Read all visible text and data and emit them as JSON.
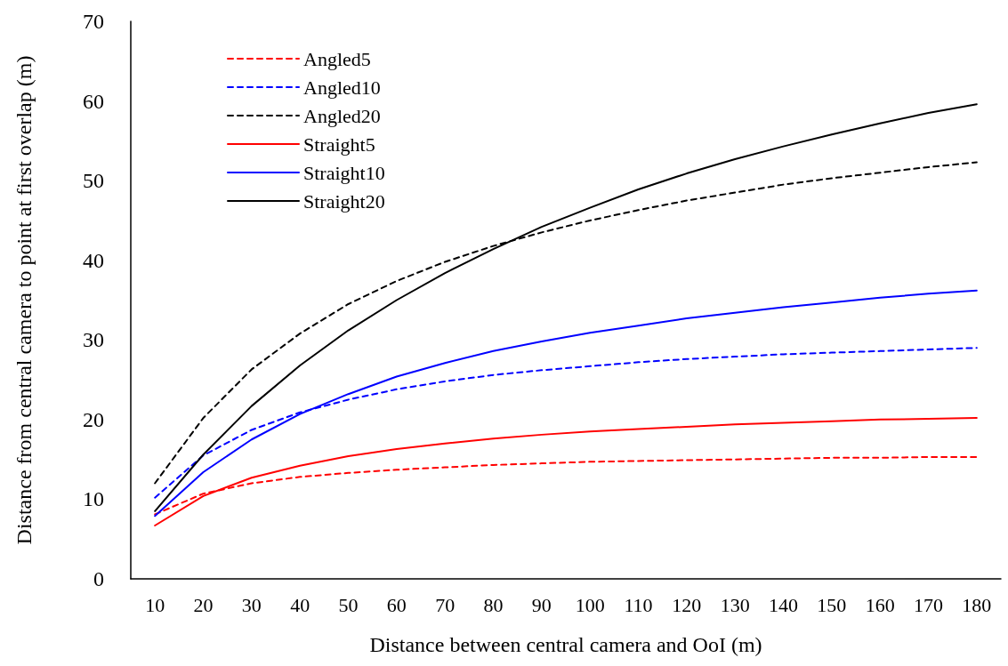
{
  "chart_data": {
    "type": "line",
    "xlabel": "Distance between central camera and OoI (m)",
    "ylabel": "Distance from central camera to point at first overlap (m)",
    "categories": [
      "10",
      "20",
      "30",
      "40",
      "50",
      "60",
      "70",
      "80",
      "90",
      "100",
      "110",
      "120",
      "130",
      "140",
      "150",
      "160",
      "170",
      "180"
    ],
    "ylim": [
      0,
      70
    ],
    "yticks": [
      0,
      10,
      20,
      30,
      40,
      50,
      60,
      70
    ],
    "grid": false,
    "legend": "top left",
    "marker": "none",
    "series": [
      {
        "name": "Angled5",
        "color": "#ff0000",
        "line_style": "dashed",
        "values": [
          8.1,
          10.7,
          12.0,
          12.8,
          13.3,
          13.7,
          14.0,
          14.3,
          14.5,
          14.7,
          14.8,
          14.9,
          15.0,
          15.1,
          15.2,
          15.2,
          15.3,
          15.3
        ]
      },
      {
        "name": "Angled10",
        "color": "#0000ff",
        "line_style": "dashed",
        "values": [
          10.2,
          15.5,
          18.7,
          20.9,
          22.5,
          23.8,
          24.8,
          25.6,
          26.2,
          26.7,
          27.2,
          27.6,
          27.9,
          28.2,
          28.4,
          28.6,
          28.8,
          29.0
        ]
      },
      {
        "name": "Angled20",
        "color": "#000000",
        "line_style": "dashed",
        "values": [
          12.0,
          20.2,
          26.3,
          30.8,
          34.5,
          37.4,
          39.8,
          41.8,
          43.5,
          45.0,
          46.3,
          47.5,
          48.5,
          49.5,
          50.3,
          51.0,
          51.7,
          52.3
        ]
      },
      {
        "name": "Straight5",
        "color": "#ff0000",
        "line_style": "solid",
        "values": [
          6.7,
          10.4,
          12.7,
          14.2,
          15.4,
          16.3,
          17.0,
          17.6,
          18.1,
          18.5,
          18.8,
          19.1,
          19.4,
          19.6,
          19.8,
          20.0,
          20.1,
          20.2
        ]
      },
      {
        "name": "Straight10",
        "color": "#0000ff",
        "line_style": "solid",
        "values": [
          7.9,
          13.4,
          17.5,
          20.7,
          23.2,
          25.4,
          27.1,
          28.6,
          29.8,
          30.9,
          31.8,
          32.7,
          33.4,
          34.1,
          34.7,
          35.3,
          35.8,
          36.2
        ]
      },
      {
        "name": "Straight20",
        "color": "#000000",
        "line_style": "solid",
        "values": [
          8.5,
          15.6,
          21.7,
          26.8,
          31.2,
          35.0,
          38.4,
          41.4,
          44.2,
          46.6,
          48.9,
          50.9,
          52.7,
          54.3,
          55.8,
          57.2,
          58.5,
          59.6
        ]
      }
    ]
  }
}
